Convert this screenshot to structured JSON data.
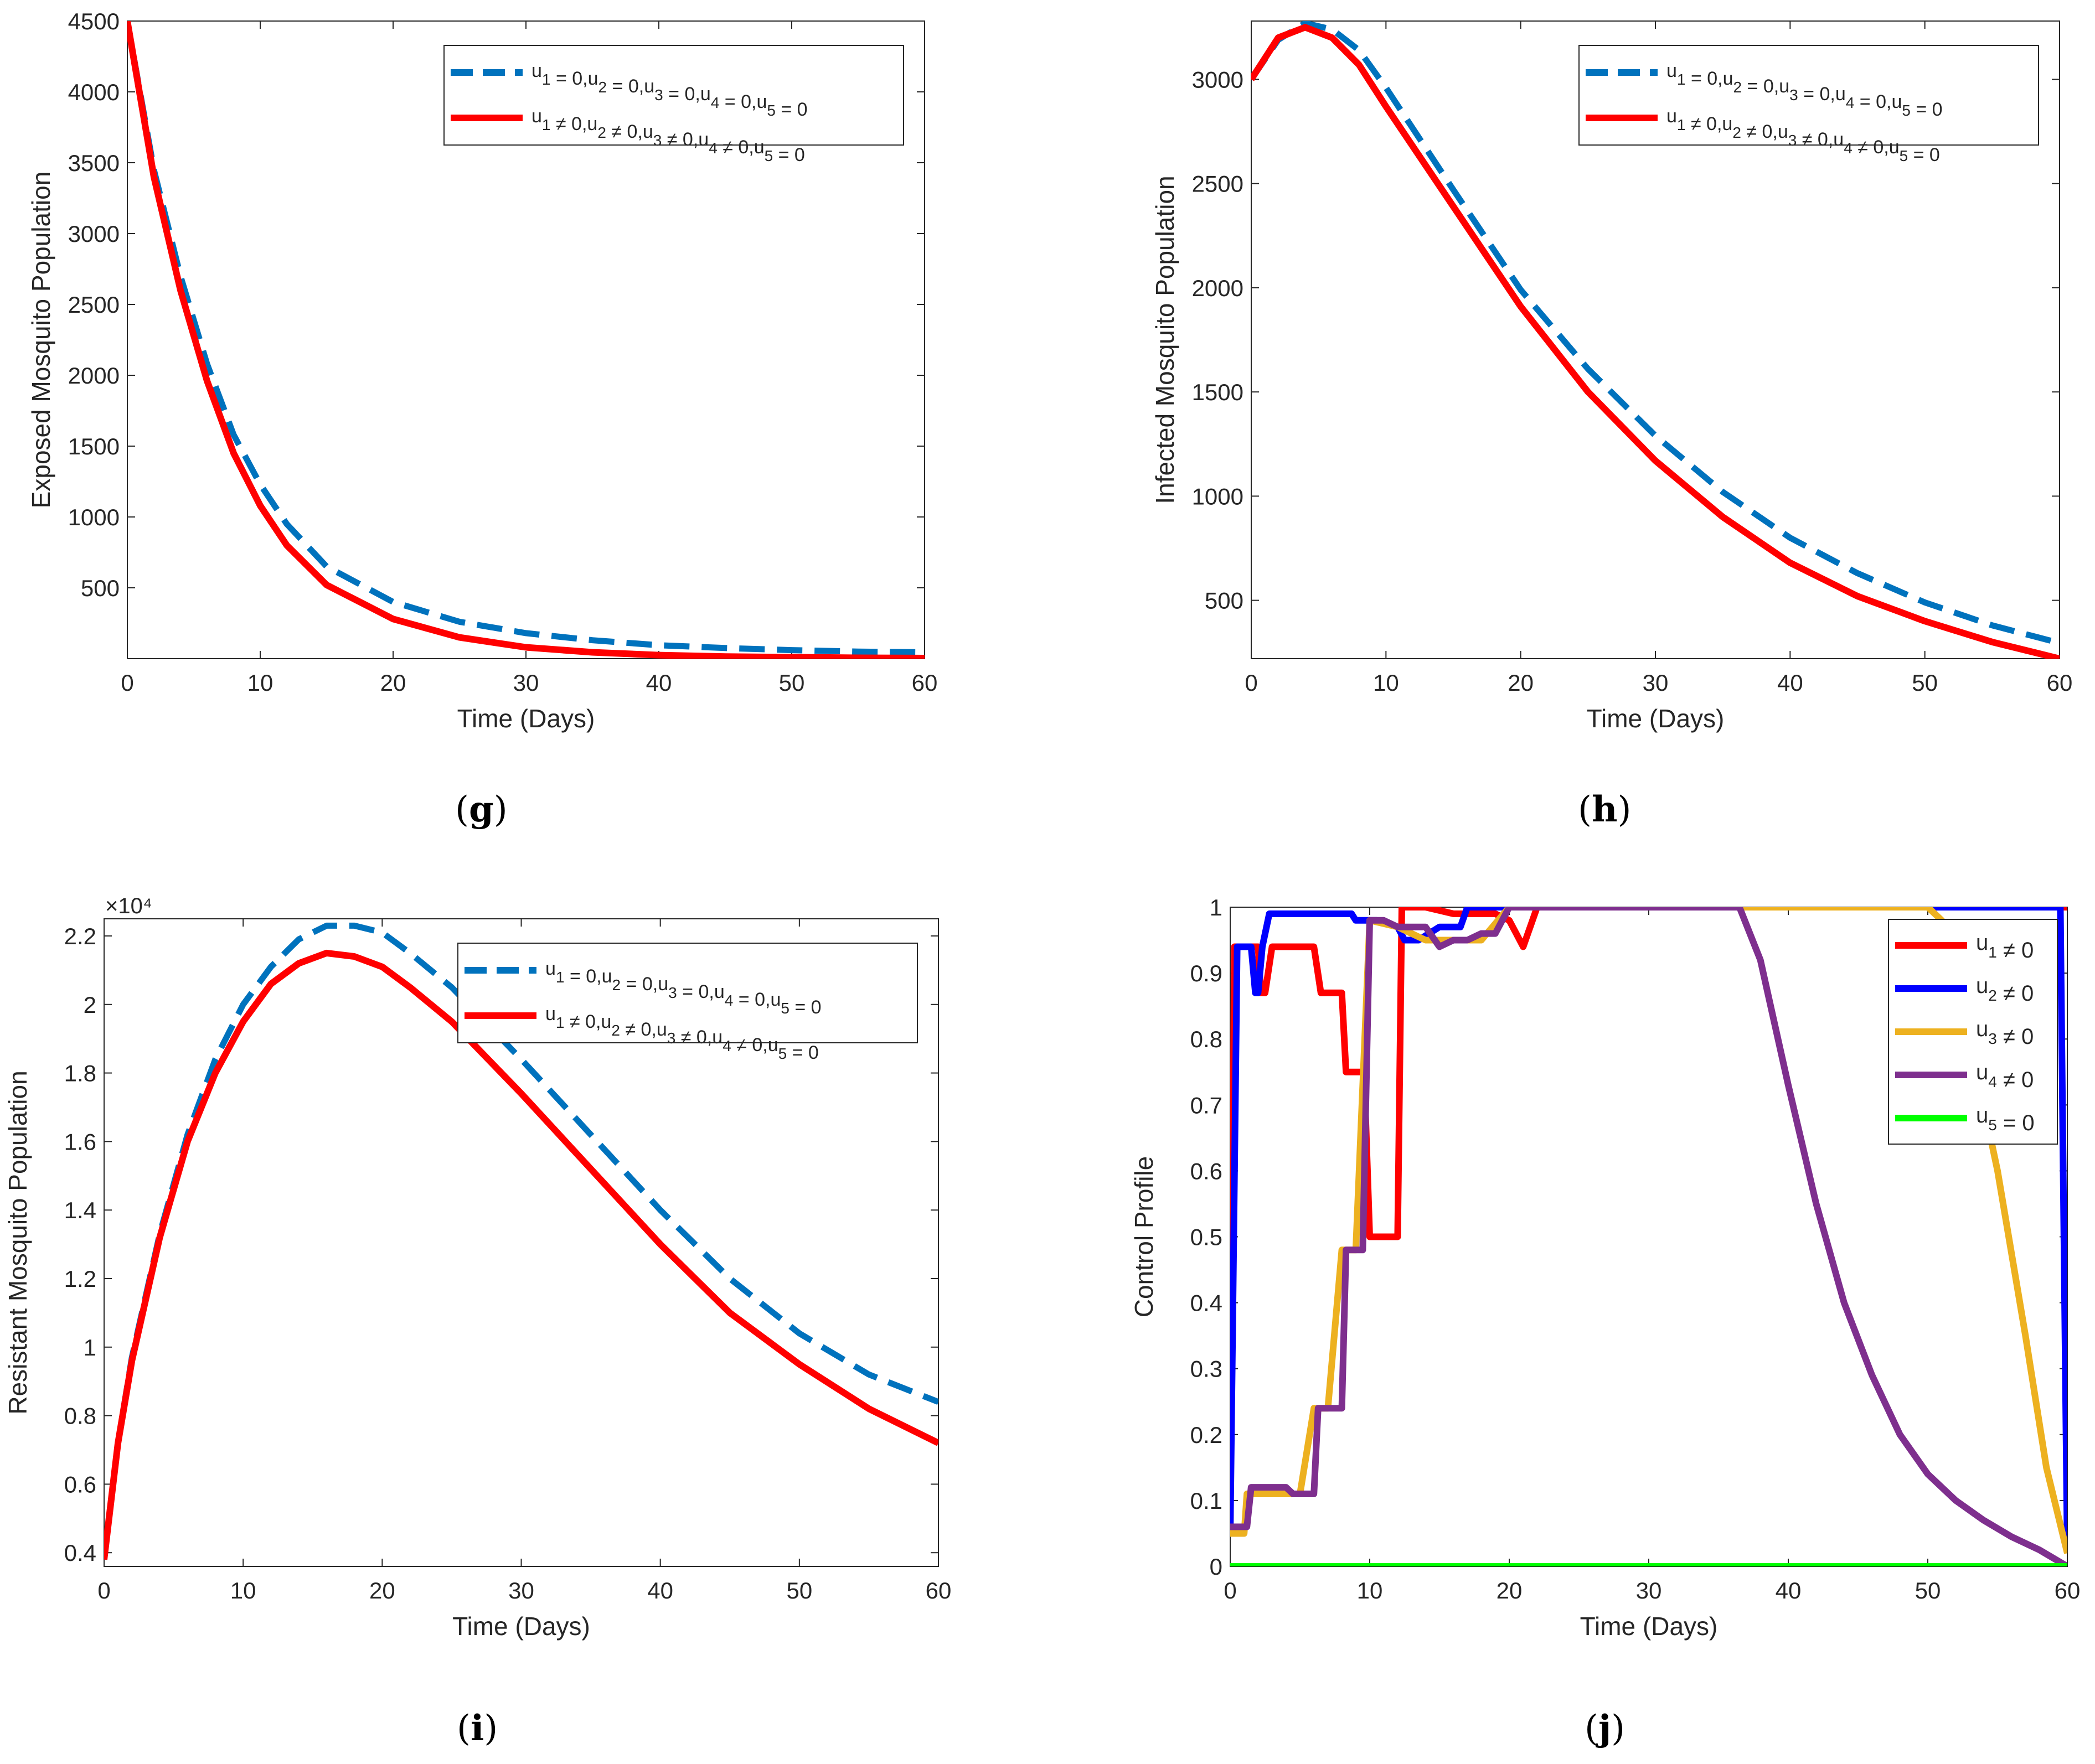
{
  "panels": [
    {
      "id": "g",
      "caption": "g",
      "chart_data": {
        "type": "line",
        "title": "",
        "xlabel": "Time (Days)",
        "ylabel": "Exposed Mosquito Population",
        "xlim": [
          0,
          60
        ],
        "ylim": [
          0,
          4500
        ],
        "xticks": [
          0,
          10,
          20,
          30,
          40,
          50,
          60
        ],
        "xtick_labels": [
          "0",
          "10",
          "20",
          "30",
          "40",
          "50",
          "60"
        ],
        "yticks": [
          500,
          1000,
          1500,
          2000,
          2500,
          3000,
          3500,
          4000,
          4500
        ],
        "ytick_labels": [
          "500",
          "1000",
          "1500",
          "2000",
          "2500",
          "3000",
          "3500",
          "4000",
          "4500"
        ],
        "exponent": "",
        "legend": "top-right",
        "series": [
          {
            "name": "u1 = 0,u2 = 0,u3 = 0,u4 = 0,u5 = 0",
            "color": "#0072bd",
            "style": "dashed",
            "x": [
              0,
              2,
              4,
              6,
              8,
              10,
              12,
              15,
              20,
              25,
              30,
              35,
              40,
              45,
              50,
              55,
              60
            ],
            "y": [
              4500,
              3450,
              2700,
              2080,
              1580,
              1230,
              950,
              650,
              400,
              260,
              180,
              130,
              95,
              75,
              60,
              50,
              45
            ]
          },
          {
            "name": "u1 ≠ 0,u2 ≠ 0,u3 ≠ 0,u4 ≠ 0,u5 = 0",
            "color": "#ff0000",
            "style": "solid",
            "x": [
              0,
              2,
              4,
              6,
              8,
              10,
              12,
              15,
              20,
              25,
              30,
              35,
              40,
              45,
              50,
              55,
              60
            ],
            "y": [
              4500,
              3400,
              2600,
              1960,
              1450,
              1080,
              800,
              520,
              280,
              150,
              80,
              45,
              25,
              15,
              10,
              6,
              4
            ]
          }
        ]
      }
    },
    {
      "id": "h",
      "caption": "h",
      "chart_data": {
        "type": "line",
        "title": "",
        "xlabel": "Time (Days)",
        "ylabel": "Infected Mosquito Population",
        "xlim": [
          0,
          60
        ],
        "ylim": [
          220,
          3280
        ],
        "xticks": [
          0,
          10,
          20,
          30,
          40,
          50,
          60
        ],
        "xtick_labels": [
          "0",
          "10",
          "20",
          "30",
          "40",
          "50",
          "60"
        ],
        "yticks": [
          500,
          1000,
          1500,
          2000,
          2500,
          3000
        ],
        "ytick_labels": [
          "500",
          "1000",
          "1500",
          "2000",
          "2500",
          "3000"
        ],
        "exponent": "",
        "legend": "top-right",
        "series": [
          {
            "name": "u1 = 0,u2 = 0,u3 = 0,u4 = 0,u5 = 0",
            "color": "#0072bd",
            "style": "dashed",
            "x": [
              0,
              2,
              4,
              6,
              8,
              10,
              15,
              20,
              25,
              30,
              35,
              40,
              45,
              50,
              55,
              60
            ],
            "y": [
              3000,
              3190,
              3270,
              3240,
              3140,
              2960,
              2470,
              1990,
              1610,
              1290,
              1020,
              800,
              630,
              490,
              380,
              295
            ]
          },
          {
            "name": "u1 ≠ 0,u2 ≠ 0,u3 ≠ 0,u4 ≠ 0,u5 = 0",
            "color": "#ff0000",
            "style": "solid",
            "x": [
              0,
              2,
              4,
              6,
              8,
              10,
              15,
              20,
              25,
              30,
              35,
              40,
              45,
              50,
              55,
              60
            ],
            "y": [
              3000,
              3200,
              3250,
              3200,
              3070,
              2870,
              2390,
              1910,
              1500,
              1170,
              900,
              680,
              520,
              400,
              300,
              220
            ]
          }
        ]
      }
    },
    {
      "id": "i",
      "caption": "i",
      "chart_data": {
        "type": "line",
        "title": "",
        "xlabel": "Time (Days)",
        "ylabel": "Resistant Mosquito Population",
        "xlim": [
          0,
          60
        ],
        "ylim": [
          0.36,
          2.25
        ],
        "xticks": [
          0,
          10,
          20,
          30,
          40,
          50,
          60
        ],
        "xtick_labels": [
          "0",
          "10",
          "20",
          "30",
          "40",
          "50",
          "60"
        ],
        "yticks": [
          0.4,
          0.6,
          0.8,
          1.0,
          1.2,
          1.4,
          1.6,
          1.8,
          2.0,
          2.2
        ],
        "ytick_labels": [
          "0.4",
          "0.6",
          "0.8",
          "1",
          "1.2",
          "1.4",
          "1.6",
          "1.8",
          "2",
          "2.2"
        ],
        "exponent": "×10⁴",
        "legend": "top-right",
        "series": [
          {
            "name": "u1 = 0,u2 = 0,u3 = 0,u4 = 0,u5 = 0",
            "color": "#0072bd",
            "style": "dashed",
            "x": [
              0,
              1,
              2,
              4,
              6,
              8,
              10,
              12,
              14,
              16,
              18,
              20,
              22,
              25,
              30,
              35,
              40,
              45,
              50,
              55,
              60
            ],
            "y": [
              0.38,
              0.72,
              0.97,
              1.33,
              1.62,
              1.84,
              2.0,
              2.11,
              2.19,
              2.23,
              2.23,
              2.21,
              2.15,
              2.05,
              1.84,
              1.62,
              1.4,
              1.2,
              1.04,
              0.92,
              0.84
            ]
          },
          {
            "name": "u1 ≠ 0,u2 ≠ 0,u3 ≠ 0,u4 ≠ 0,u5 = 0",
            "color": "#ff0000",
            "style": "solid",
            "x": [
              0,
              1,
              2,
              4,
              6,
              8,
              10,
              12,
              14,
              16,
              18,
              20,
              22,
              25,
              30,
              35,
              40,
              45,
              50,
              55,
              60
            ],
            "y": [
              0.38,
              0.72,
              0.96,
              1.32,
              1.6,
              1.8,
              1.95,
              2.06,
              2.12,
              2.15,
              2.14,
              2.11,
              2.05,
              1.95,
              1.74,
              1.52,
              1.3,
              1.1,
              0.95,
              0.82,
              0.72
            ]
          }
        ]
      }
    },
    {
      "id": "j",
      "caption": "j",
      "chart_data": {
        "type": "line",
        "title": "",
        "xlabel": "Time (Days)",
        "ylabel": "Control Profile",
        "xlim": [
          0,
          60
        ],
        "ylim": [
          0,
          1
        ],
        "xticks": [
          0,
          10,
          20,
          30,
          40,
          50,
          60
        ],
        "xtick_labels": [
          "0",
          "10",
          "20",
          "30",
          "40",
          "50",
          "60"
        ],
        "yticks": [
          0,
          0.1,
          0.2,
          0.3,
          0.4,
          0.5,
          0.6,
          0.7,
          0.8,
          0.9,
          1.0
        ],
        "ytick_labels": [
          "0",
          "0.1",
          "0.2",
          "0.3",
          "0.4",
          "0.5",
          "0.6",
          "0.7",
          "0.8",
          "0.9",
          "1"
        ],
        "exponent": "",
        "legend": "top-right",
        "series": [
          {
            "name": "u1 ≠ 0",
            "color": "#ff0000",
            "style": "solid",
            "x": [
              0,
              0.3,
              2,
              2.2,
              2.5,
              3,
              4,
              6,
              6.5,
              7,
              8,
              8.3,
              9,
              9.6,
              10,
              10.3,
              11,
              12,
              12.3,
              14,
              16,
              18,
              19,
              20,
              20.5,
              21,
              22,
              60
            ],
            "y": [
              0.05,
              0.94,
              0.94,
              0.87,
              0.87,
              0.94,
              0.94,
              0.94,
              0.87,
              0.87,
              0.87,
              0.75,
              0.75,
              0.75,
              0.5,
              0.5,
              0.5,
              0.5,
              1.0,
              1.0,
              0.99,
              0.99,
              0.99,
              0.98,
              0.96,
              0.94,
              1.0,
              1.0
            ]
          },
          {
            "name": "u2 ≠ 0",
            "color": "#0000ff",
            "style": "solid",
            "x": [
              0,
              0.5,
              1,
              1.5,
              1.8,
              2,
              2.3,
              2.8,
              5,
              7,
              8,
              8.7,
              9,
              9.5,
              10,
              10.5,
              12,
              12.5,
              13.5,
              15,
              16.5,
              17,
              20,
              55,
              59.5,
              60
            ],
            "y": [
              0.05,
              0.94,
              0.94,
              0.94,
              0.87,
              0.87,
              0.94,
              0.99,
              0.99,
              0.99,
              0.99,
              0.99,
              0.98,
              0.98,
              0.98,
              0.98,
              0.97,
              0.95,
              0.95,
              0.97,
              0.97,
              1.0,
              1.0,
              1.0,
              1.0,
              0.02
            ]
          },
          {
            "name": "u3 ≠ 0",
            "color": "#edb120",
            "style": "solid",
            "x": [
              0,
              1,
              1.2,
              3,
              4,
              4.5,
              5,
              6,
              7,
              8,
              9,
              10,
              12,
              14,
              15,
              16,
              18,
              20,
              50,
              51,
              53,
              55,
              57,
              58.5,
              60
            ],
            "y": [
              0.05,
              0.05,
              0.11,
              0.11,
              0.11,
              0.11,
              0.11,
              0.24,
              0.24,
              0.48,
              0.48,
              0.98,
              0.97,
              0.95,
              0.95,
              0.95,
              0.95,
              1.0,
              1.0,
              0.98,
              0.8,
              0.6,
              0.35,
              0.15,
              0.02
            ]
          },
          {
            "name": "u4 ≠ 0",
            "color": "#7e2f8e",
            "style": "solid",
            "x": [
              0,
              1.2,
              1.5,
              3,
              4,
              4.5,
              5,
              6,
              6.3,
              7,
              7.3,
              8,
              8.3,
              9,
              9.5,
              10,
              11,
              12,
              13,
              14,
              15,
              16,
              17,
              18,
              19,
              20,
              36.5,
              38,
              40,
              42,
              44,
              46,
              48,
              50,
              52,
              54,
              56,
              58,
              60
            ],
            "y": [
              0.06,
              0.06,
              0.12,
              0.12,
              0.12,
              0.11,
              0.11,
              0.11,
              0.24,
              0.24,
              0.24,
              0.24,
              0.48,
              0.48,
              0.48,
              0.98,
              0.98,
              0.97,
              0.97,
              0.97,
              0.94,
              0.95,
              0.95,
              0.96,
              0.96,
              1.0,
              1.0,
              0.92,
              0.73,
              0.55,
              0.4,
              0.29,
              0.2,
              0.14,
              0.1,
              0.07,
              0.045,
              0.025,
              0.0
            ]
          },
          {
            "name": "u5 = 0",
            "color": "#00ff00",
            "style": "solid",
            "x": [
              0,
              60
            ],
            "y": [
              0.0,
              0.0
            ]
          }
        ]
      }
    }
  ]
}
